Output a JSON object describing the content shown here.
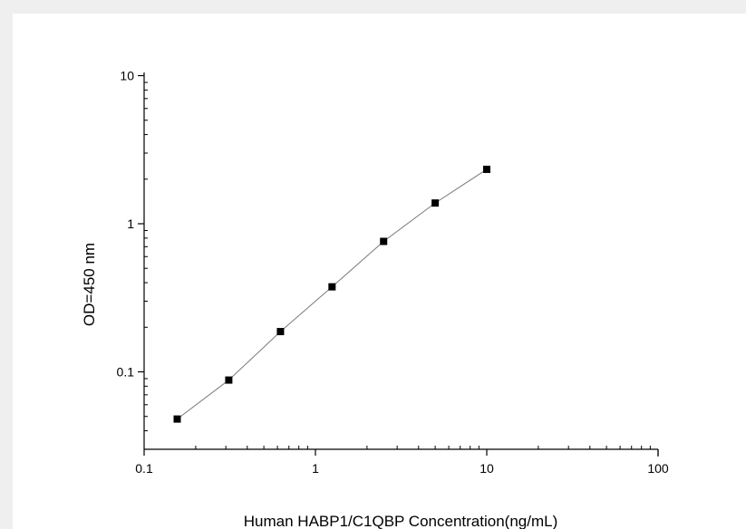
{
  "chart_data": {
    "type": "scatter",
    "title": "",
    "xlabel": "Human HABP1/C1QBP Concentration(ng/mL)",
    "ylabel": "OD=450 nm",
    "x_scale": "log",
    "y_scale": "log",
    "xlim": [
      0.1,
      100
    ],
    "ylim": [
      0.03,
      10
    ],
    "x_ticks": [
      "0.1",
      "1",
      "10",
      "100"
    ],
    "y_ticks": [
      "0.1",
      "1",
      "10"
    ],
    "grid": false,
    "legend": "none",
    "connect_points": true,
    "series": [
      {
        "x": [
          0.156,
          0.312,
          0.625,
          1.25,
          2.5,
          5,
          10
        ],
        "y": [
          0.048,
          0.088,
          0.187,
          0.375,
          0.76,
          1.38,
          2.33
        ]
      }
    ]
  }
}
